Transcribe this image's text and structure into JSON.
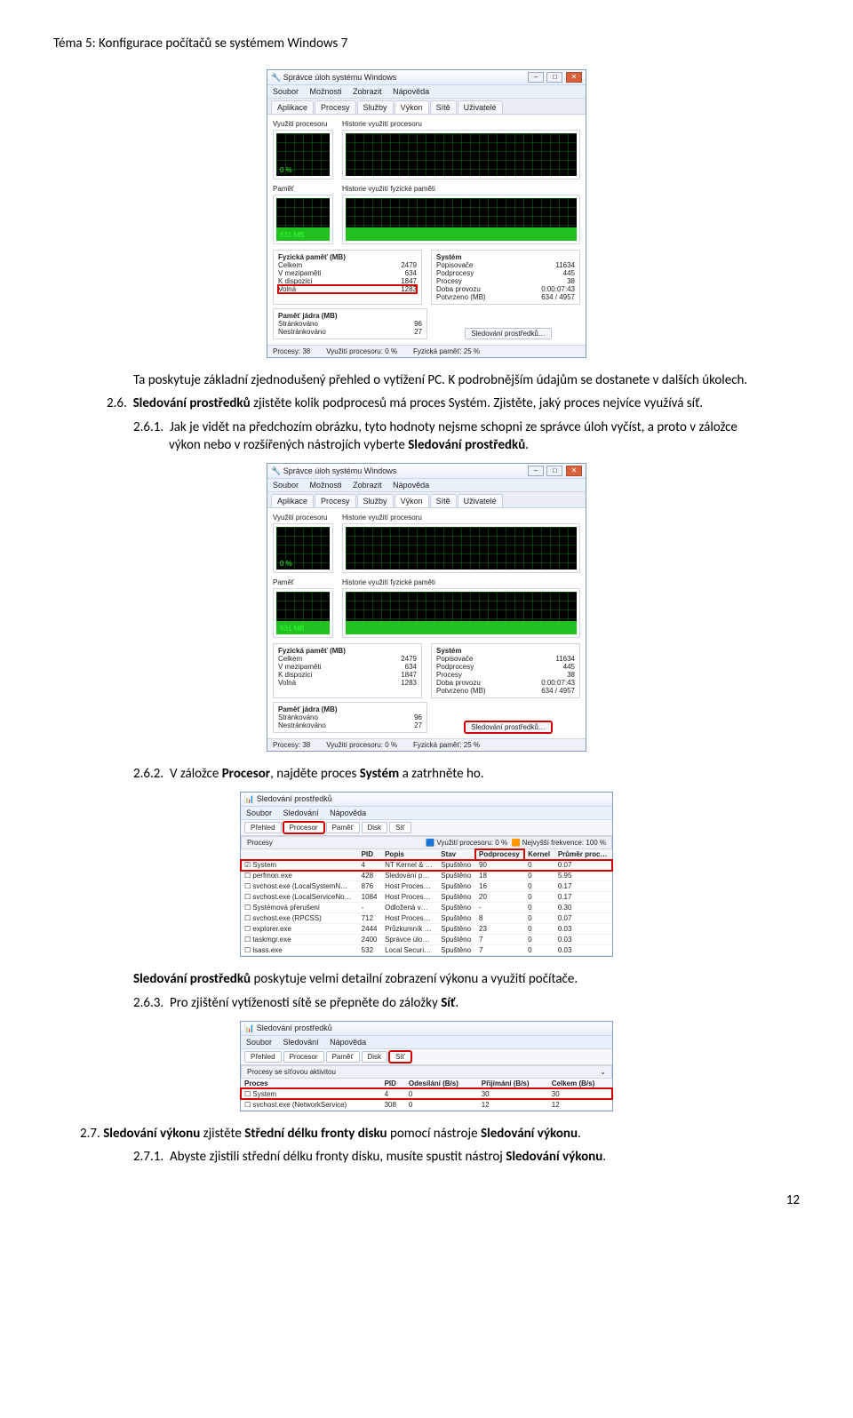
{
  "header": "Téma 5: Konfigurace počítačů se systémem Windows 7",
  "taskmgr": {
    "title": "Správce úloh systému Windows",
    "menus": [
      "Soubor",
      "Možnosti",
      "Zobrazit",
      "Nápověda"
    ],
    "tabs": [
      "Aplikace",
      "Procesy",
      "Služby",
      "Výkon",
      "Sítě",
      "Uživatelé"
    ],
    "active_tab": "Výkon",
    "cpu_box_label": "Využití procesoru",
    "cpu_hist_label": "Historie využití procesoru",
    "cpu_pct": "0 %",
    "mem_box_label": "Paměť",
    "mem_hist_label": "Historie využití fyzické paměti",
    "mem_label": "631 MB",
    "mem_fill_pct": 32,
    "stats_mem_title": "Fyzická paměť (MB)",
    "stats_mem": [
      {
        "k": "Celkem",
        "v": "2479"
      },
      {
        "k": "V mezipaměti",
        "v": "634"
      },
      {
        "k": "K dispozici",
        "v": "1847"
      },
      {
        "k": "Volná",
        "v": "1283"
      }
    ],
    "stats_sys_title": "Systém",
    "stats_sys": [
      {
        "k": "Popisovače",
        "v": "11634"
      },
      {
        "k": "Podprocesy",
        "v": "445"
      },
      {
        "k": "Procesy",
        "v": "38"
      },
      {
        "k": "Doba provozu",
        "v": "0:00:07:43"
      },
      {
        "k": "Potvrzeno (MB)",
        "v": "634 / 4957"
      }
    ],
    "stats_kernel_title": "Paměť jádra (MB)",
    "stats_kernel": [
      {
        "k": "Stránkováno",
        "v": "96"
      },
      {
        "k": "Nestránkováno",
        "v": "27"
      }
    ],
    "res_button": "Sledování prostředků…",
    "status": [
      "Procesy: 38",
      "Využití procesoru: 0 %",
      "Fyzická paměť: 25 %"
    ],
    "highlight1": "volna",
    "highlight2": "resbtn"
  },
  "para1a": "Ta poskytuje základní zjednodušený přehled o vytížení PC. K podrobnějším údajům se dostanete v dalších úkolech.",
  "n26_num": "2.6.",
  "n26_lead": "Sledování prostředků",
  "n26_rest": " zjistěte kolik podprocesů má proces Systém. Zjistěte, jaký proces nejvíce využívá síť.",
  "n261_num": "2.6.1.",
  "n261": "Jak je vidět na předchozím obrázku, tyto hodnoty nejsme schopni ze správce úloh vyčíst, a proto v záložce výkon nebo v rozšířených nástrojích vyberte ",
  "n261_b": "Sledování prostředků",
  "n261_end": ".",
  "n262_num": "2.6.2.",
  "n262_a": "V záložce ",
  "n262_b1": "Procesor",
  "n262_mid": ", najděte proces ",
  "n262_b2": "Systém",
  "n262_end": " a zatrhněte ho.",
  "resmon": {
    "title": "Sledování prostředků",
    "menus": [
      "Soubor",
      "Sledování",
      "Nápověda"
    ],
    "tabs": [
      "Přehled",
      "Procesor",
      "Paměť",
      "Disk",
      "Síť"
    ],
    "active_tab": "Procesor",
    "section": "Procesy",
    "meter1": "Využití procesoru: 0 %",
    "meter2": "Nejvyšší frekvence: 100 %",
    "cols": [
      "",
      "PID",
      "Popis",
      "Stav",
      "Podprocesy",
      "Kernel",
      "Průměr proc…"
    ],
    "rows": [
      {
        "name": "System",
        "pid": "4",
        "desc": "NT Kernel & …",
        "state": "Spuštěno",
        "threads": "90",
        "kernel": "0",
        "avg": "0.07",
        "chk": true,
        "hl": true
      },
      {
        "name": "perfmon.exe",
        "pid": "428",
        "desc": "Sledování p…",
        "state": "Spuštěno",
        "threads": "18",
        "kernel": "0",
        "avg": "5.95"
      },
      {
        "name": "svchost.exe (LocalSystemN…",
        "pid": "876",
        "desc": "Host Proces…",
        "state": "Spuštěno",
        "threads": "16",
        "kernel": "0",
        "avg": "0.17"
      },
      {
        "name": "svchost.exe (LocalServiceNo…",
        "pid": "1084",
        "desc": "Host Proces…",
        "state": "Spuštěno",
        "threads": "20",
        "kernel": "0",
        "avg": "0.17"
      },
      {
        "name": "Systémová přerušení",
        "pid": "-",
        "desc": "Odložená v…",
        "state": "Spuštěno",
        "threads": "-",
        "kernel": "0",
        "avg": "0.30"
      },
      {
        "name": "svchost.exe (RPCSS)",
        "pid": "712",
        "desc": "Host Proces…",
        "state": "Spuštěno",
        "threads": "8",
        "kernel": "0",
        "avg": "0.07"
      },
      {
        "name": "explorer.exe",
        "pid": "2444",
        "desc": "Průzkumník …",
        "state": "Spuštěno",
        "threads": "23",
        "kernel": "0",
        "avg": "0.03"
      },
      {
        "name": "taskmgr.exe",
        "pid": "2400",
        "desc": "Správce úlo…",
        "state": "Spuštěno",
        "threads": "7",
        "kernel": "0",
        "avg": "0.03"
      },
      {
        "name": "lsass.exe",
        "pid": "532",
        "desc": "Local Securi…",
        "state": "Spuštěno",
        "threads": "7",
        "kernel": "0",
        "avg": "0.03"
      }
    ]
  },
  "para3_b": "Sledování prostředků",
  "para3_rest": " poskytuje velmi detailní zobrazení výkonu a využití počítače.",
  "n263_num": "2.6.3.",
  "n263_a": "Pro zjištění vytíženosti sítě se přepněte do záložky ",
  "n263_b": "Síť",
  "n263_end": ".",
  "resmon_net": {
    "title": "Sledování prostředků",
    "menus": [
      "Soubor",
      "Sledování",
      "Nápověda"
    ],
    "tabs": [
      "Přehled",
      "Procesor",
      "Paměť",
      "Disk",
      "Síť"
    ],
    "active_tab": "Síť",
    "section": "Procesy se síťovou aktivitou",
    "cols": [
      "Proces",
      "PID",
      "Odesílání (B/s)",
      "Přijímání (B/s)",
      "Celkem (B/s)"
    ],
    "rows": [
      {
        "name": "System",
        "pid": "4",
        "send": "0",
        "recv": "30",
        "tot": "30",
        "hl": true
      },
      {
        "name": "svchost.exe (NetworkService)",
        "pid": "308",
        "send": "0",
        "recv": "12",
        "tot": "12"
      }
    ]
  },
  "n27_num": "2.7.",
  "n27_lead": "Sledování výkonu",
  "n27_mid": " zjistěte ",
  "n27_b2": "Střední délku fronty disku",
  "n27_mid2": " pomocí nástroje ",
  "n27_b3": "Sledování výkonu",
  "n27_end": ".",
  "n271_num": "2.7.1.",
  "n271_a": "Abyste zjistili střední délku fronty disku, musíte spustit nástroj ",
  "n271_b": "Sledování výkonu",
  "n271_end": ".",
  "pagenum": "12",
  "colors": {
    "red": "#d40000",
    "green_bar": "#20c020"
  }
}
